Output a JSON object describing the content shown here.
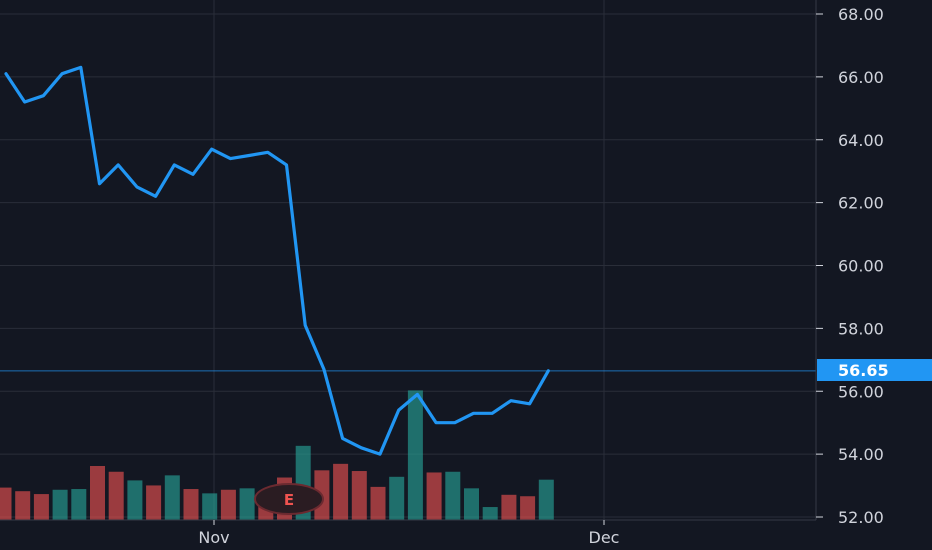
{
  "chart_data": {
    "type": "line",
    "ylim": [
      52,
      68
    ],
    "y_ticks": [
      "68.00",
      "66.00",
      "64.00",
      "62.00",
      "60.00",
      "58.00",
      "56.00",
      "54.00",
      "52.00"
    ],
    "x_ticks": [
      "Nov",
      "Dec"
    ],
    "grid": true,
    "series": [
      {
        "values": [
          66.1,
          65.2,
          65.4,
          66.1,
          66.3,
          62.6,
          63.2,
          62.5,
          62.2,
          63.2,
          62.9,
          63.7,
          63.4,
          63.5,
          63.6,
          63.2,
          58.1,
          56.7,
          54.5,
          54.2,
          54.0,
          55.4,
          55.9,
          55.0,
          55.0,
          55.3,
          55.3,
          55.7,
          55.6,
          56.65
        ]
      }
    ],
    "last_value": "56.65",
    "volume": [
      {
        "v": 0.45,
        "up": false
      },
      {
        "v": 0.4,
        "up": false
      },
      {
        "v": 0.36,
        "up": false
      },
      {
        "v": 0.42,
        "up": true
      },
      {
        "v": 0.43,
        "up": true
      },
      {
        "v": 0.75,
        "up": false
      },
      {
        "v": 0.67,
        "up": false
      },
      {
        "v": 0.55,
        "up": true
      },
      {
        "v": 0.48,
        "up": false
      },
      {
        "v": 0.62,
        "up": true
      },
      {
        "v": 0.43,
        "up": false
      },
      {
        "v": 0.37,
        "up": true
      },
      {
        "v": 0.42,
        "up": false
      },
      {
        "v": 0.44,
        "up": true
      },
      {
        "v": 0.2,
        "up": false
      },
      {
        "v": 0.59,
        "up": false
      },
      {
        "v": 1.03,
        "up": true
      },
      {
        "v": 0.69,
        "up": false
      },
      {
        "v": 0.78,
        "up": false
      },
      {
        "v": 0.68,
        "up": false
      },
      {
        "v": 0.46,
        "up": false
      },
      {
        "v": 0.6,
        "up": true
      },
      {
        "v": 1.8,
        "up": true
      },
      {
        "v": 0.66,
        "up": false
      },
      {
        "v": 0.67,
        "up": true
      },
      {
        "v": 0.44,
        "up": true
      },
      {
        "v": 0.18,
        "up": true
      },
      {
        "v": 0.35,
        "up": false
      },
      {
        "v": 0.33,
        "up": false
      },
      {
        "v": 0.56,
        "up": true
      }
    ],
    "event_marker": {
      "label": "E"
    },
    "colors": {
      "background": "#131722",
      "grid": "#2a2e39",
      "line": "#2196f3",
      "volume_up": "#26a69a",
      "volume_down": "#ef5350",
      "axis_text": "#d1d4dc",
      "last_badge": "#2196f3"
    }
  }
}
